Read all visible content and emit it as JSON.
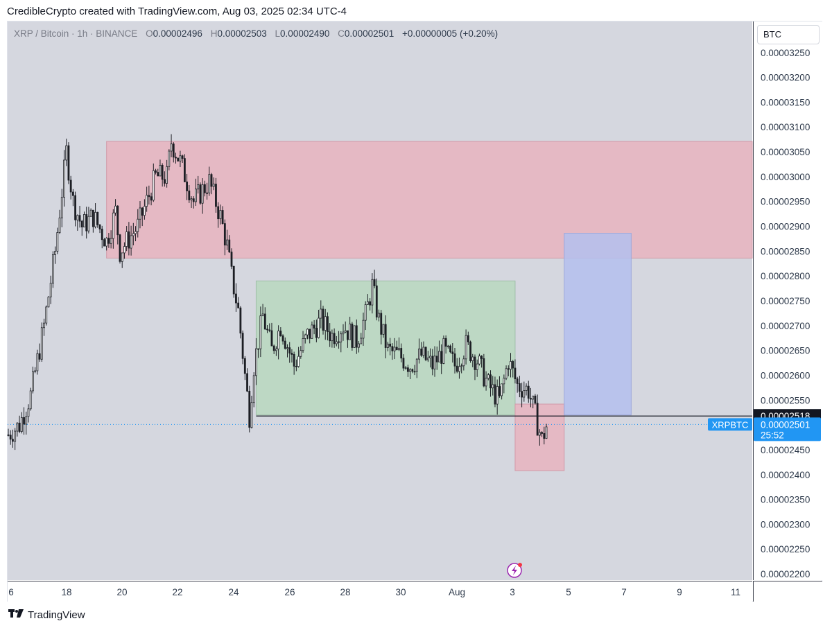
{
  "header": {
    "title": "CredibleCrypto created with TradingView.com, Aug 03, 2025 02:34 UTC-4"
  },
  "legend": {
    "symbol": "XRP / Bitcoin · 1h · BINANCE",
    "o_label": "O",
    "o": "0.00002496",
    "h_label": "H",
    "h": "0.00002503",
    "l_label": "L",
    "l": "0.00002490",
    "c_label": "C",
    "c": "0.00002501",
    "change": "+0.00000005 (+0.20%)"
  },
  "currency_button": "BTC",
  "footer": {
    "brand": "TradingView"
  },
  "colors": {
    "plot_bg": "#d5d7df",
    "candle": "#1c1e24",
    "supply_zone": "#e8b4c0",
    "range_zone": "#b8d8c0",
    "target_zone": "#b4bfee",
    "stop_zone": "#e8b4c0",
    "last_price_bg": "#2196f3",
    "level_label_bg": "#131722"
  },
  "chart_data": {
    "type": "candlestick",
    "symbol": "XRPBTC",
    "timeframe": "1h",
    "ylim": [
      2.1875e-05,
      3.3125e-05
    ],
    "y_ticks": [
      "0.00003250",
      "0.00003200",
      "0.00003150",
      "0.00003100",
      "0.00003050",
      "0.00003000",
      "0.00002950",
      "0.00002900",
      "0.00002850",
      "0.00002800",
      "0.00002750",
      "0.00002700",
      "0.00002650",
      "0.00002600",
      "0.00002550",
      "0.00002500",
      "0.00002450",
      "0.00002400",
      "0.00002350",
      "0.00002300",
      "0.00002250",
      "0.00002200"
    ],
    "x_ticks": [
      "6",
      "18",
      "20",
      "22",
      "24",
      "26",
      "28",
      "30",
      "Aug",
      "3",
      "5",
      "7",
      "9",
      "11"
    ],
    "price_path": [
      [
        0,
        2.48e-05
      ],
      [
        5,
        2.5e-05
      ],
      [
        10,
        2.56e-05
      ],
      [
        16,
        2.7e-05
      ],
      [
        21,
        2.85e-05
      ],
      [
        26,
        3.05e-05
      ],
      [
        29,
        2.95e-05
      ],
      [
        33,
        2.9e-05
      ],
      [
        38,
        2.92e-05
      ],
      [
        44,
        2.87e-05
      ],
      [
        48,
        2.93e-05
      ],
      [
        50,
        2.85e-05
      ],
      [
        58,
        2.9e-05
      ],
      [
        66,
        3e-05
      ],
      [
        71,
        3e-05
      ],
      [
        73,
        3.07e-05
      ],
      [
        77,
        3.03e-05
      ],
      [
        83,
        2.95e-05
      ],
      [
        90,
        2.99e-05
      ],
      [
        95,
        2.92e-05
      ],
      [
        98,
        2.86e-05
      ],
      [
        100,
        2.8e-05
      ],
      [
        103,
        2.73e-05
      ],
      [
        106,
        2.6e-05
      ],
      [
        108,
        2.52e-05
      ],
      [
        110,
        2.62e-05
      ],
      [
        114,
        2.72e-05
      ],
      [
        118,
        2.65e-05
      ],
      [
        122,
        2.7e-05
      ],
      [
        128,
        2.62e-05
      ],
      [
        134,
        2.68e-05
      ],
      [
        140,
        2.71e-05
      ],
      [
        145,
        2.68e-05
      ],
      [
        150,
        2.7e-05
      ],
      [
        156,
        2.67e-05
      ],
      [
        160,
        2.72e-05
      ],
      [
        163,
        2.78e-05
      ],
      [
        166,
        2.71e-05
      ],
      [
        170,
        2.65e-05
      ],
      [
        175,
        2.64e-05
      ],
      [
        180,
        2.62e-05
      ],
      [
        185,
        2.64e-05
      ],
      [
        190,
        2.62e-05
      ],
      [
        195,
        2.65e-05
      ],
      [
        200,
        2.62e-05
      ],
      [
        205,
        2.66e-05
      ],
      [
        210,
        2.63e-05
      ],
      [
        215,
        2.58e-05
      ],
      [
        220,
        2.55e-05
      ],
      [
        224,
        2.63e-05
      ],
      [
        228,
        2.58e-05
      ],
      [
        233,
        2.57e-05
      ],
      [
        236,
        2.52e-05
      ],
      [
        239,
        2.47e-05
      ],
      [
        242,
        2.51e-05
      ]
    ],
    "annotations": [
      {
        "type": "supply_zone",
        "t0": 44,
        "t1": 344,
        "price_low": 2.836e-05,
        "price_high": 3.071e-05
      },
      {
        "type": "range_box",
        "t0": 111,
        "t1": 227,
        "price_low": 2.52e-05,
        "price_high": 2.79e-05
      },
      {
        "type": "stop_zone",
        "t0": 227,
        "t1": 249,
        "price_low": 2.408e-05,
        "price_high": 2.542e-05
      },
      {
        "type": "target_zone",
        "t0": 249,
        "t1": 279,
        "price_low": 2.52e-05,
        "price_high": 2.886e-05
      }
    ],
    "horizontal_line": {
      "price": 2.518e-05,
      "label": "0.00002518"
    },
    "last_price": {
      "price": 2.501e-05,
      "symbol_label": "XRPBTC",
      "price_label": "0.00002501",
      "countdown": "25:52"
    },
    "grid": false
  }
}
